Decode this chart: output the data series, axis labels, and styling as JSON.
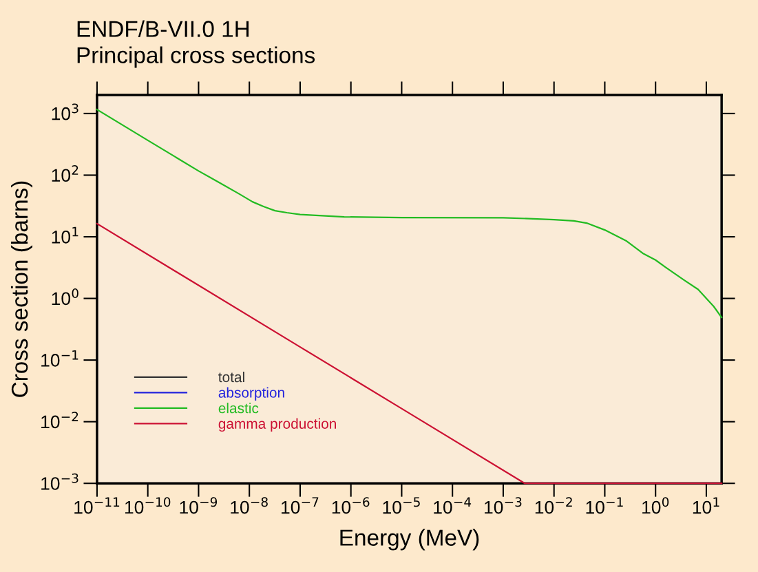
{
  "chart_data": {
    "type": "line",
    "title": "ENDF/B-VII.0 1H",
    "subtitle": "Principal cross sections",
    "xlabel": "Energy (MeV)",
    "ylabel": "Cross section (barns)",
    "log": "xy",
    "xlim": [
      1e-11,
      20
    ],
    "ylim": [
      0.001,
      2000
    ],
    "xticks": [
      {
        "value": 1e-11,
        "label": "10$^{−11}$"
      },
      {
        "value": 1e-10,
        "label": "10$^{−10}$"
      },
      {
        "value": 1e-09,
        "label": "10$^{−9}$"
      },
      {
        "value": 1e-08,
        "label": "10$^{−8}$"
      },
      {
        "value": 1e-07,
        "label": "10$^{−7}$"
      },
      {
        "value": 1e-06,
        "label": "10$^{−6}$"
      },
      {
        "value": 1e-05,
        "label": "10$^{−5}$"
      },
      {
        "value": 0.0001,
        "label": "10$^{−4}$"
      },
      {
        "value": 0.001,
        "label": "10$^{−3}$"
      },
      {
        "value": 0.01,
        "label": "10$^{−2}$"
      },
      {
        "value": 0.1,
        "label": "10$^{−1}$"
      },
      {
        "value": 1,
        "label": "10$^{0}$"
      },
      {
        "value": 10,
        "label": "10$^{1}$"
      }
    ],
    "yticks": [
      {
        "value": 0.001,
        "label": "10$^{−3}$"
      },
      {
        "value": 0.01,
        "label": "10$^{−2}$"
      },
      {
        "value": 0.1,
        "label": "10$^{−1}$"
      },
      {
        "value": 1,
        "label": "10$^{0}$"
      },
      {
        "value": 10,
        "label": "10$^{1}$"
      },
      {
        "value": 100,
        "label": "10$^{2}$"
      },
      {
        "value": 1000,
        "label": "10$^{3}$"
      }
    ],
    "grid": false,
    "legend": "bottom left",
    "line_style": "solid",
    "marker": "none",
    "series": [
      {
        "name": "total",
        "color": "#333333"
      },
      {
        "name": "absorption",
        "color": "#2222dd"
      },
      {
        "name": "elastic",
        "color": "#22bb22",
        "x": [
          1e-11,
          1e-10,
          1e-09,
          2.7e-09,
          6.2e-09,
          1.15e-08,
          1.9e-08,
          3.2e-08,
          5.5e-08,
          1e-07,
          7.4e-07,
          1e-05,
          0.001,
          0.01,
          0.0245,
          0.044,
          0.1,
          0.27,
          0.56,
          1,
          1.58,
          3.6,
          6.9,
          10,
          14,
          20
        ],
        "values": [
          1160,
          367,
          117,
          74,
          50,
          37,
          31,
          26.5,
          24.6,
          23,
          21,
          20.5,
          20.4,
          19,
          18.1,
          16.7,
          12.9,
          8.5,
          5.4,
          4.2,
          3.2,
          2.0,
          1.4,
          1.0,
          0.74,
          0.49
        ]
      },
      {
        "name": "gamma production",
        "color": "#cc1133",
        "x": [
          1e-11,
          1e-09,
          1e-07,
          1e-05,
          0.00266,
          0.01,
          0.1,
          1,
          20
        ],
        "values": [
          16.3,
          1.63,
          0.163,
          0.0163,
          0.001,
          0.001,
          0.001,
          0.001,
          0.001
        ]
      }
    ]
  }
}
